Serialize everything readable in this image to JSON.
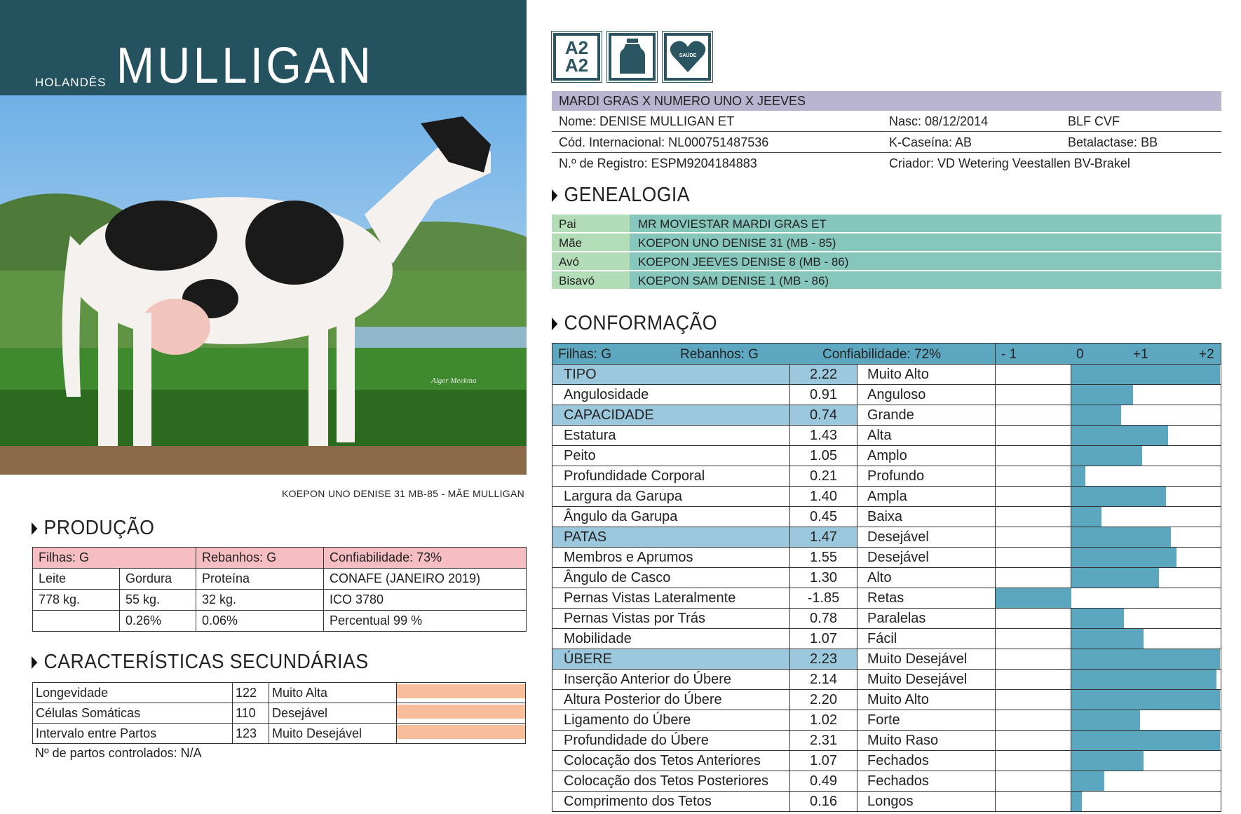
{
  "header": {
    "breed": "HOLANDÊS",
    "name": "MULLIGAN",
    "band_color": "#24525F"
  },
  "photo": {
    "watermark": "Alger Meekma",
    "caption": "KOEPON UNO DENISE 31 MB-85 - MÃE MULLIGAN"
  },
  "icons": [
    {
      "name": "a2a2-icon",
      "text": "A2\nA2"
    },
    {
      "name": "milk-can-icon"
    },
    {
      "name": "health-heart-icon",
      "text": "SAÚDE"
    }
  ],
  "pedigree_line": "MARDI GRAS X NUMERO UNO X JEEVES",
  "info": {
    "nome": "Nome: DENISE MULLIGAN ET",
    "nasc": "Nasc: 08/12/2014",
    "codes": "BLF CVF",
    "cod": "Cód. Internacional: NL000751487536",
    "kcas": "K-Caseína: AB",
    "beta": "Betalactase: BB",
    "reg": "N.º de Registro: ESPM9204184883",
    "criador": "Criador: VD Wetering Veestallen BV-Brakel"
  },
  "genealogia": {
    "title": "GENEALOGIA",
    "rows": [
      {
        "label": "Pai",
        "value": "MR MOVIESTAR MARDI GRAS ET"
      },
      {
        "label": "Mãe",
        "value": "KOEPON UNO DENISE 31 (MB - 85)"
      },
      {
        "label": "Avó",
        "value": "KOEPON JEEVES DENISE 8 (MB - 86)"
      },
      {
        "label": "Bisavó",
        "value": "KOEPON SAM DENISE 1 (MB - 86)"
      }
    ]
  },
  "producao": {
    "title": "PRODUÇÃO",
    "filhas": "Filhas: G",
    "rebanhos": "Rebanhos: G",
    "conf": "Confiabilidade: 73%",
    "rows": [
      [
        "Leite",
        "Gordura",
        "Proteína",
        "CONAFE (JANEIRO 2019)"
      ],
      [
        "778 kg.",
        "55 kg.",
        "32 kg.",
        "ICO  3780"
      ],
      [
        "",
        "0.26%",
        "0.06%",
        "Percentual  99 %"
      ]
    ]
  },
  "secundarias": {
    "title": "CARACTERÍSTICAS SECUNDÁRIAS",
    "rows": [
      {
        "name": "Longevidade",
        "value": "122",
        "desc": "Muito Alta"
      },
      {
        "name": "Células Somáticas",
        "value": "110",
        "desc": "Desejável"
      },
      {
        "name": "Intervalo entre Partos",
        "value": "123",
        "desc": "Muito Desejável"
      }
    ],
    "note": "Nº de partos controlados: N/A"
  },
  "conformacao": {
    "title": "CONFORMAÇÃO",
    "filhas": "Filhas: G",
    "rebanhos": "Rebanhos: G",
    "conf": "Confiabilidade:  72%",
    "scale": [
      "- 1",
      "0",
      "+1",
      "+2"
    ],
    "rows": [
      {
        "name": "TIPO",
        "value": "2.22",
        "desc": "Muito Alto",
        "hl": true
      },
      {
        "name": "Angulosidade",
        "value": "0.91",
        "desc": "Anguloso"
      },
      {
        "name": "CAPACIDADE",
        "value": "0.74",
        "desc": "Grande",
        "hl": true
      },
      {
        "name": "Estatura",
        "value": "1.43",
        "desc": "Alta"
      },
      {
        "name": "Peito",
        "value": "1.05",
        "desc": "Amplo"
      },
      {
        "name": "Profundidade Corporal",
        "value": "0.21",
        "desc": "Profundo"
      },
      {
        "name": "Largura da Garupa",
        "value": "1.40",
        "desc": "Ampla"
      },
      {
        "name": "Ângulo da Garupa",
        "value": "0.45",
        "desc": "Baixa"
      },
      {
        "name": "PATAS",
        "value": "1.47",
        "desc": "Desejável",
        "hl": true
      },
      {
        "name": "Membros e Aprumos",
        "value": "1.55",
        "desc": "Desejável"
      },
      {
        "name": "Ângulo de Casco",
        "value": "1.30",
        "desc": "Alto"
      },
      {
        "name": "Pernas Vistas Lateralmente",
        "value": "-1.85",
        "desc": "Retas"
      },
      {
        "name": "Pernas Vistas por Trás",
        "value": "0.78",
        "desc": "Paralelas"
      },
      {
        "name": "Mobilidade",
        "value": "1.07",
        "desc": "Fácil"
      },
      {
        "name": "ÚBERE",
        "value": "2.23",
        "desc": "Muito Desejável",
        "hl": true
      },
      {
        "name": "Inserção Anterior do Úbere",
        "value": "2.14",
        "desc": "Muito Desejável"
      },
      {
        "name": "Altura Posterior do Úbere",
        "value": "2.20",
        "desc": "Muito Alto"
      },
      {
        "name": "Ligamento do Úbere",
        "value": "1.02",
        "desc": "Forte"
      },
      {
        "name": "Profundidade do Úbere",
        "value": "2.31",
        "desc": "Muito Raso"
      },
      {
        "name": "Colocação dos Tetos Anteriores",
        "value": "1.07",
        "desc": "Fechados"
      },
      {
        "name": "Colocação dos Tetos Posteriores",
        "value": "0.49",
        "desc": "Fechados"
      },
      {
        "name": "Comprimento dos Tetos",
        "value": "0.16",
        "desc": "Longos"
      }
    ]
  }
}
